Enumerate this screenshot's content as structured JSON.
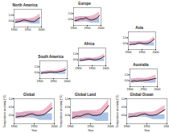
{
  "chart_data": [
    {
      "type": "line",
      "title": "North America",
      "x": [
        1905,
        1915,
        1925,
        1935,
        1945,
        1955,
        1965,
        1975,
        1985,
        1995
      ],
      "xlim": [
        1900,
        2000
      ],
      "xticks": [
        1900,
        1950,
        2000
      ],
      "ylim": [
        -1.0,
        2.0
      ],
      "yticks": [
        {
          "value": 0,
          "label": "0.0"
        },
        {
          "value": 1,
          "label": "1.0"
        }
      ],
      "series": [
        {
          "type": "area",
          "color": "#8fb0de",
          "lower": [
            -0.4,
            -0.4,
            -0.3,
            -0.3,
            -0.3,
            -0.4,
            -0.5,
            -0.5,
            -0.5,
            -0.5
          ],
          "upper": [
            0.3,
            0.3,
            0.4,
            0.4,
            0.4,
            0.3,
            0.3,
            0.3,
            0.3,
            0.3
          ]
        },
        {
          "type": "area",
          "color": "#e9a3b8",
          "lower": [
            -0.4,
            -0.3,
            -0.3,
            -0.2,
            -0.2,
            -0.2,
            -0.2,
            -0.1,
            0.1,
            0.3
          ],
          "upper": [
            0.3,
            0.3,
            0.4,
            0.4,
            0.4,
            0.4,
            0.5,
            0.6,
            0.9,
            1.2
          ]
        },
        {
          "type": "line",
          "color": "#000000",
          "values": [
            -0.2,
            -0.1,
            0.0,
            0.2,
            0.1,
            0.0,
            -0.1,
            -0.1,
            0.3,
            0.6
          ]
        }
      ]
    },
    {
      "type": "line",
      "title": "Europe",
      "x": [
        1905,
        1915,
        1925,
        1935,
        1945,
        1955,
        1965,
        1975,
        1985,
        1995
      ],
      "xlim": [
        1900,
        2000
      ],
      "xticks": [
        1900,
        1950,
        2000
      ],
      "ylim": [
        -1.0,
        2.0
      ],
      "yticks": [
        {
          "value": 0,
          "label": "0.0"
        },
        {
          "value": 1,
          "label": "1.0"
        }
      ],
      "series": [
        {
          "type": "area",
          "color": "#8fb0de",
          "lower": [
            -0.5,
            -0.5,
            -0.4,
            -0.4,
            -0.4,
            -0.5,
            -0.6,
            -0.6,
            -0.6,
            -0.6
          ],
          "upper": [
            0.4,
            0.4,
            0.5,
            0.5,
            0.5,
            0.4,
            0.3,
            0.3,
            0.3,
            0.3
          ]
        },
        {
          "type": "area",
          "color": "#e9a3b8",
          "lower": [
            -0.5,
            -0.4,
            -0.4,
            -0.3,
            -0.3,
            -0.3,
            -0.3,
            -0.2,
            0.0,
            0.3
          ],
          "upper": [
            0.4,
            0.4,
            0.5,
            0.5,
            0.5,
            0.5,
            0.6,
            0.7,
            1.0,
            1.3
          ]
        },
        {
          "type": "line",
          "color": "#000000",
          "values": [
            -0.2,
            -0.1,
            0.1,
            0.1,
            0.3,
            0.0,
            -0.1,
            0.0,
            0.2,
            0.7
          ]
        }
      ]
    },
    {
      "type": "line",
      "title": "Asia",
      "x": [
        1905,
        1915,
        1925,
        1935,
        1945,
        1955,
        1965,
        1975,
        1985,
        1995
      ],
      "xlim": [
        1900,
        2000
      ],
      "xticks": [
        1900,
        1950,
        2000
      ],
      "ylim": [
        -1.0,
        2.0
      ],
      "yticks": [
        {
          "value": 0,
          "label": "0.0"
        },
        {
          "value": 1,
          "label": "1.0"
        }
      ],
      "series": [
        {
          "type": "area",
          "color": "#8fb0de",
          "lower": [
            -0.3,
            -0.3,
            -0.3,
            -0.2,
            -0.2,
            -0.3,
            -0.4,
            -0.4,
            -0.4,
            -0.4
          ],
          "upper": [
            0.3,
            0.3,
            0.3,
            0.3,
            0.3,
            0.2,
            0.2,
            0.2,
            0.2,
            0.2
          ]
        },
        {
          "type": "area",
          "color": "#e9a3b8",
          "lower": [
            -0.3,
            -0.3,
            -0.2,
            -0.2,
            -0.1,
            -0.1,
            -0.1,
            0.0,
            0.2,
            0.4
          ],
          "upper": [
            0.3,
            0.3,
            0.3,
            0.4,
            0.4,
            0.4,
            0.4,
            0.5,
            0.8,
            1.2
          ]
        },
        {
          "type": "line",
          "color": "#000000",
          "values": [
            -0.2,
            -0.1,
            -0.1,
            0.1,
            0.1,
            0.0,
            0.0,
            0.1,
            0.4,
            0.8
          ]
        }
      ]
    },
    {
      "type": "line",
      "title": "Africa",
      "x": [
        1905,
        1915,
        1925,
        1935,
        1945,
        1955,
        1965,
        1975,
        1985,
        1995
      ],
      "xlim": [
        1900,
        2000
      ],
      "xticks": [
        1900,
        1950,
        2000
      ],
      "ylim": [
        -1.0,
        2.0
      ],
      "yticks": [
        {
          "value": 0,
          "label": "0.0"
        },
        {
          "value": 1,
          "label": "1.0"
        }
      ],
      "series": [
        {
          "type": "area",
          "color": "#8fb0de",
          "lower": [
            -0.3,
            -0.3,
            -0.2,
            -0.2,
            -0.2,
            -0.3,
            -0.3,
            -0.3,
            -0.3,
            -0.3
          ],
          "upper": [
            0.2,
            0.2,
            0.3,
            0.3,
            0.3,
            0.2,
            0.2,
            0.2,
            0.2,
            0.2
          ]
        },
        {
          "type": "area",
          "color": "#e9a3b8",
          "lower": [
            -0.3,
            -0.2,
            -0.2,
            -0.1,
            -0.1,
            -0.1,
            -0.1,
            0.0,
            0.2,
            0.4
          ],
          "upper": [
            0.2,
            0.2,
            0.3,
            0.3,
            0.3,
            0.3,
            0.4,
            0.5,
            0.7,
            1.0
          ]
        },
        {
          "type": "line",
          "color": "#000000",
          "values": [
            -0.1,
            -0.1,
            0.0,
            0.1,
            0.1,
            0.0,
            0.0,
            0.1,
            0.3,
            0.6
          ]
        }
      ]
    },
    {
      "type": "line",
      "title": "South America",
      "x": [
        1905,
        1915,
        1925,
        1935,
        1945,
        1955,
        1965,
        1975,
        1985,
        1995
      ],
      "xlim": [
        1900,
        2000
      ],
      "xticks": [
        1900,
        1950,
        2000
      ],
      "ylim": [
        -1.0,
        2.0
      ],
      "yticks": [
        {
          "value": 0,
          "label": "0.0"
        },
        {
          "value": 1,
          "label": "1.0"
        }
      ],
      "series": [
        {
          "type": "area",
          "color": "#8fb0de",
          "lower": [
            -0.3,
            -0.3,
            -0.2,
            -0.2,
            -0.2,
            -0.3,
            -0.3,
            -0.3,
            -0.3,
            -0.3
          ],
          "upper": [
            0.2,
            0.2,
            0.3,
            0.3,
            0.3,
            0.2,
            0.2,
            0.2,
            0.2,
            0.2
          ]
        },
        {
          "type": "area",
          "color": "#e9a3b8",
          "lower": [
            -0.3,
            -0.2,
            -0.2,
            -0.1,
            -0.1,
            -0.1,
            -0.1,
            0.0,
            0.1,
            0.3
          ],
          "upper": [
            0.2,
            0.2,
            0.3,
            0.3,
            0.3,
            0.3,
            0.4,
            0.5,
            0.6,
            0.9
          ]
        },
        {
          "type": "line",
          "color": "#000000",
          "values": [
            -0.1,
            0.0,
            0.0,
            0.1,
            0.1,
            0.1,
            0.1,
            0.2,
            0.3,
            0.5
          ]
        }
      ]
    },
    {
      "type": "line",
      "title": "Australia",
      "x": [
        1905,
        1915,
        1925,
        1935,
        1945,
        1955,
        1965,
        1975,
        1985,
        1995
      ],
      "xlim": [
        1900,
        2000
      ],
      "xticks": [
        1900,
        1950,
        2000
      ],
      "ylim": [
        -1.0,
        2.0
      ],
      "yticks": [
        {
          "value": 0,
          "label": "0.0"
        },
        {
          "value": 1,
          "label": "1.0"
        }
      ],
      "series": [
        {
          "type": "area",
          "color": "#8fb0de",
          "lower": [
            -0.4,
            -0.4,
            -0.3,
            -0.3,
            -0.3,
            -0.4,
            -0.4,
            -0.4,
            -0.4,
            -0.4
          ],
          "upper": [
            0.3,
            0.3,
            0.4,
            0.4,
            0.4,
            0.3,
            0.3,
            0.3,
            0.3,
            0.3
          ]
        },
        {
          "type": "area",
          "color": "#e9a3b8",
          "lower": [
            -0.4,
            -0.3,
            -0.3,
            -0.2,
            -0.2,
            -0.2,
            -0.2,
            -0.1,
            0.0,
            0.2
          ],
          "upper": [
            0.3,
            0.3,
            0.4,
            0.4,
            0.4,
            0.4,
            0.5,
            0.6,
            0.8,
            1.0
          ]
        },
        {
          "type": "line",
          "color": "#000000",
          "values": [
            -0.1,
            0.0,
            -0.1,
            0.0,
            0.0,
            0.1,
            0.1,
            0.2,
            0.3,
            0.4
          ]
        }
      ]
    },
    {
      "type": "line",
      "title": "Global",
      "x_label": "Year",
      "y_label": "Temperature anomaly (°C)",
      "x": [
        1905,
        1915,
        1925,
        1935,
        1945,
        1955,
        1965,
        1975,
        1985,
        1995
      ],
      "xlim": [
        1900,
        2000
      ],
      "xticks": [
        1900,
        1950,
        2000
      ],
      "ylim": [
        -0.5,
        1.0
      ],
      "yticks": [
        {
          "value": 0,
          "label": "0.0"
        },
        {
          "value": 0.5,
          "label": "0.5"
        },
        {
          "value": 1,
          "label": "1.0"
        }
      ],
      "series": [
        {
          "type": "area",
          "color": "#8fb0de",
          "lower": [
            -0.2,
            -0.2,
            -0.15,
            -0.15,
            -0.15,
            -0.2,
            -0.3,
            -0.3,
            -0.3,
            -0.3
          ],
          "upper": [
            0.15,
            0.15,
            0.2,
            0.2,
            0.2,
            0.15,
            0.1,
            0.1,
            0.1,
            0.1
          ]
        },
        {
          "type": "area",
          "color": "#e9a3b8",
          "lower": [
            -0.2,
            -0.15,
            -0.15,
            -0.1,
            -0.05,
            -0.05,
            -0.05,
            0.0,
            0.15,
            0.35
          ],
          "upper": [
            0.15,
            0.15,
            0.2,
            0.25,
            0.25,
            0.25,
            0.25,
            0.35,
            0.55,
            0.8
          ]
        },
        {
          "type": "line",
          "color": "#000000",
          "values": [
            -0.1,
            -0.05,
            -0.05,
            0.05,
            0.1,
            0.0,
            0.0,
            0.05,
            0.25,
            0.45
          ]
        }
      ]
    },
    {
      "type": "line",
      "title": "Global Land",
      "x_label": "Year",
      "y_label": "Temperature anomaly (°C)",
      "x": [
        1905,
        1915,
        1925,
        1935,
        1945,
        1955,
        1965,
        1975,
        1985,
        1995
      ],
      "xlim": [
        1900,
        2000
      ],
      "xticks": [
        1900,
        1950,
        2000
      ],
      "ylim": [
        -0.5,
        1.0
      ],
      "yticks": [
        {
          "value": 0,
          "label": "0.0"
        },
        {
          "value": 0.5,
          "label": "0.5"
        },
        {
          "value": 1,
          "label": "1.0"
        }
      ],
      "series": [
        {
          "type": "area",
          "color": "#8fb0de",
          "lower": [
            -0.25,
            -0.25,
            -0.2,
            -0.2,
            -0.2,
            -0.25,
            -0.35,
            -0.35,
            -0.35,
            -0.35
          ],
          "upper": [
            0.2,
            0.2,
            0.25,
            0.25,
            0.25,
            0.2,
            0.15,
            0.15,
            0.15,
            0.15
          ]
        },
        {
          "type": "area",
          "color": "#e9a3b8",
          "lower": [
            -0.25,
            -0.2,
            -0.2,
            -0.1,
            -0.05,
            -0.05,
            -0.05,
            0.0,
            0.2,
            0.45
          ],
          "upper": [
            0.2,
            0.2,
            0.25,
            0.3,
            0.3,
            0.3,
            0.3,
            0.4,
            0.65,
            0.95
          ]
        },
        {
          "type": "line",
          "color": "#000000",
          "values": [
            -0.15,
            -0.05,
            -0.05,
            0.05,
            0.1,
            0.0,
            0.0,
            0.05,
            0.3,
            0.6
          ]
        }
      ]
    },
    {
      "type": "line",
      "title": "Global Ocean",
      "x_label": "Year",
      "y_label": "Temperature anomaly (°C)",
      "x": [
        1905,
        1915,
        1925,
        1935,
        1945,
        1955,
        1965,
        1975,
        1985,
        1995
      ],
      "xlim": [
        1900,
        2000
      ],
      "xticks": [
        1900,
        1950,
        2000
      ],
      "ylim": [
        -0.5,
        1.0
      ],
      "yticks": [
        {
          "value": 0,
          "label": "0.0"
        },
        {
          "value": 0.5,
          "label": "0.5"
        },
        {
          "value": 1,
          "label": "1.0"
        }
      ],
      "series": [
        {
          "type": "area",
          "color": "#8fb0de",
          "lower": [
            -0.15,
            -0.15,
            -0.1,
            -0.1,
            -0.1,
            -0.15,
            -0.25,
            -0.25,
            -0.25,
            -0.25
          ],
          "upper": [
            0.1,
            0.1,
            0.15,
            0.15,
            0.15,
            0.1,
            0.05,
            0.05,
            0.05,
            0.05
          ]
        },
        {
          "type": "area",
          "color": "#e9a3b8",
          "lower": [
            -0.15,
            -0.1,
            -0.1,
            -0.05,
            0.0,
            0.0,
            0.0,
            0.0,
            0.1,
            0.25
          ],
          "upper": [
            0.1,
            0.1,
            0.15,
            0.2,
            0.2,
            0.2,
            0.2,
            0.3,
            0.45,
            0.6
          ]
        },
        {
          "type": "line",
          "color": "#000000",
          "values": [
            -0.1,
            -0.05,
            -0.05,
            0.05,
            0.1,
            0.0,
            0.0,
            0.05,
            0.2,
            0.35
          ]
        }
      ]
    }
  ]
}
